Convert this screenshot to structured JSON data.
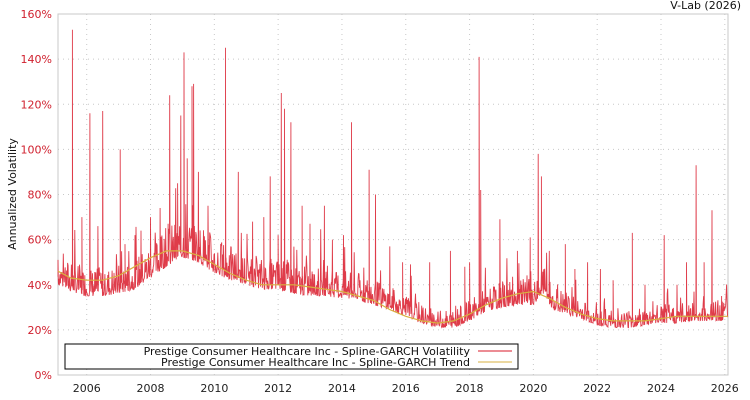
{
  "credit": "V-Lab (2026)",
  "colors": {
    "volatility": "#d91a2a",
    "trend": "#d8b040",
    "ytick": "#d0202e",
    "grid": "#c8c8c8",
    "axis": "#c8c8c8"
  },
  "chart_data": {
    "type": "line",
    "title": "",
    "xlabel": "",
    "ylabel": "Annualized Volatility",
    "xlim": [
      2005.1,
      2026.1
    ],
    "ylim": [
      0,
      160
    ],
    "y_ticks": [
      "0%",
      "20%",
      "40%",
      "60%",
      "80%",
      "100%",
      "120%",
      "140%",
      "160%"
    ],
    "x_ticks": [
      "2006",
      "2008",
      "2010",
      "2012",
      "2014",
      "2016",
      "2018",
      "2020",
      "2022",
      "2024",
      "2026"
    ],
    "grid": true,
    "legend_position": "bottom-left-inside",
    "series": [
      {
        "name": "Prestige Consumer Healthcare Inc - Spline-GARCH Volatility",
        "color": "#d91a2a",
        "baseline": {
          "x": [
            2005.1,
            2005.5,
            2006.0,
            2006.5,
            2007.0,
            2007.5,
            2008.0,
            2008.5,
            2009.0,
            2009.5,
            2010.0,
            2010.5,
            2011.0,
            2011.5,
            2012.0,
            2012.5,
            2013.0,
            2013.5,
            2014.0,
            2014.5,
            2015.0,
            2015.5,
            2016.0,
            2016.5,
            2017.0,
            2017.5,
            2018.0,
            2018.5,
            2019.0,
            2019.5,
            2020.0,
            2020.3,
            2020.6,
            2021.0,
            2021.5,
            2022.0,
            2022.5,
            2023.0,
            2023.5,
            2024.0,
            2024.5,
            2025.0,
            2025.5,
            2026.1
          ],
          "y": [
            42,
            39,
            37,
            37,
            38,
            40,
            45,
            50,
            54,
            52,
            47,
            44,
            42,
            40,
            40,
            38,
            37,
            37,
            36,
            35,
            33,
            31,
            28,
            25,
            23,
            23,
            26,
            30,
            32,
            33,
            33,
            38,
            31,
            29,
            27,
            24,
            23,
            23,
            24,
            25,
            25,
            26,
            26,
            26
          ]
        },
        "spikes": [
          {
            "x": 2005.1,
            "y": 51
          },
          {
            "x": 2005.55,
            "y": 153
          },
          {
            "x": 2005.85,
            "y": 70
          },
          {
            "x": 2006.1,
            "y": 116
          },
          {
            "x": 2006.35,
            "y": 66
          },
          {
            "x": 2006.5,
            "y": 117
          },
          {
            "x": 2007.05,
            "y": 100
          },
          {
            "x": 2007.2,
            "y": 58
          },
          {
            "x": 2007.7,
            "y": 64
          },
          {
            "x": 2008.0,
            "y": 70
          },
          {
            "x": 2008.3,
            "y": 74
          },
          {
            "x": 2008.55,
            "y": 67
          },
          {
            "x": 2008.6,
            "y": 124
          },
          {
            "x": 2008.85,
            "y": 85
          },
          {
            "x": 2008.95,
            "y": 115
          },
          {
            "x": 2009.05,
            "y": 143
          },
          {
            "x": 2009.15,
            "y": 96
          },
          {
            "x": 2009.3,
            "y": 128
          },
          {
            "x": 2009.35,
            "y": 129
          },
          {
            "x": 2009.5,
            "y": 90
          },
          {
            "x": 2009.8,
            "y": 75
          },
          {
            "x": 2010.35,
            "y": 145
          },
          {
            "x": 2010.75,
            "y": 90
          },
          {
            "x": 2011.2,
            "y": 68
          },
          {
            "x": 2011.55,
            "y": 70
          },
          {
            "x": 2011.75,
            "y": 88
          },
          {
            "x": 2012.0,
            "y": 62
          },
          {
            "x": 2012.1,
            "y": 125
          },
          {
            "x": 2012.2,
            "y": 118
          },
          {
            "x": 2012.4,
            "y": 112
          },
          {
            "x": 2012.75,
            "y": 75
          },
          {
            "x": 2013.0,
            "y": 67
          },
          {
            "x": 2013.45,
            "y": 75
          },
          {
            "x": 2013.7,
            "y": 60
          },
          {
            "x": 2014.05,
            "y": 62
          },
          {
            "x": 2014.3,
            "y": 112
          },
          {
            "x": 2014.85,
            "y": 91
          },
          {
            "x": 2015.05,
            "y": 80
          },
          {
            "x": 2015.5,
            "y": 57
          },
          {
            "x": 2015.9,
            "y": 50
          },
          {
            "x": 2016.15,
            "y": 49
          },
          {
            "x": 2016.75,
            "y": 50
          },
          {
            "x": 2017.4,
            "y": 55
          },
          {
            "x": 2017.85,
            "y": 48
          },
          {
            "x": 2018.0,
            "y": 50
          },
          {
            "x": 2018.3,
            "y": 141
          },
          {
            "x": 2018.35,
            "y": 82
          },
          {
            "x": 2018.95,
            "y": 69
          },
          {
            "x": 2019.5,
            "y": 55
          },
          {
            "x": 2019.9,
            "y": 61
          },
          {
            "x": 2020.15,
            "y": 98
          },
          {
            "x": 2020.25,
            "y": 88
          },
          {
            "x": 2020.5,
            "y": 55
          },
          {
            "x": 2021.0,
            "y": 58
          },
          {
            "x": 2021.3,
            "y": 47
          },
          {
            "x": 2021.7,
            "y": 50
          },
          {
            "x": 2022.1,
            "y": 47
          },
          {
            "x": 2022.5,
            "y": 42
          },
          {
            "x": 2023.1,
            "y": 63
          },
          {
            "x": 2023.5,
            "y": 40
          },
          {
            "x": 2024.1,
            "y": 62
          },
          {
            "x": 2024.5,
            "y": 40
          },
          {
            "x": 2024.8,
            "y": 50
          },
          {
            "x": 2025.1,
            "y": 93
          },
          {
            "x": 2025.35,
            "y": 50
          },
          {
            "x": 2025.6,
            "y": 73
          },
          {
            "x": 2025.9,
            "y": 35
          }
        ]
      },
      {
        "name": "Prestige Consumer Healthcare Inc - Spline-GARCH Trend",
        "color": "#d8b040",
        "x": [
          2005.1,
          2005.5,
          2006.0,
          2006.5,
          2007.0,
          2007.5,
          2008.0,
          2008.5,
          2009.0,
          2009.5,
          2010.0,
          2010.5,
          2011.0,
          2011.5,
          2012.0,
          2012.5,
          2013.0,
          2013.5,
          2014.0,
          2014.5,
          2015.0,
          2015.5,
          2016.0,
          2016.5,
          2017.0,
          2017.5,
          2018.0,
          2018.5,
          2019.0,
          2019.5,
          2020.0,
          2020.5,
          2021.0,
          2021.5,
          2022.0,
          2022.5,
          2023.0,
          2023.5,
          2024.0,
          2024.5,
          2025.0,
          2025.5,
          2026.1
        ],
        "y": [
          46,
          43,
          42,
          42,
          44,
          48,
          52,
          55,
          55,
          53,
          49,
          45,
          42,
          40,
          40,
          40,
          39,
          38,
          37,
          35,
          33,
          29,
          26,
          24,
          23,
          24,
          27,
          31,
          34,
          36,
          37,
          34,
          30,
          27,
          25,
          24,
          24,
          24,
          25,
          26,
          26,
          26,
          26
        ]
      }
    ]
  },
  "legend": {
    "items": [
      {
        "label": "Prestige Consumer Healthcare Inc - Spline-GARCH Volatility",
        "color": "#d91a2a"
      },
      {
        "label": "Prestige Consumer Healthcare Inc - Spline-GARCH Trend",
        "color": "#d8b040"
      }
    ]
  }
}
